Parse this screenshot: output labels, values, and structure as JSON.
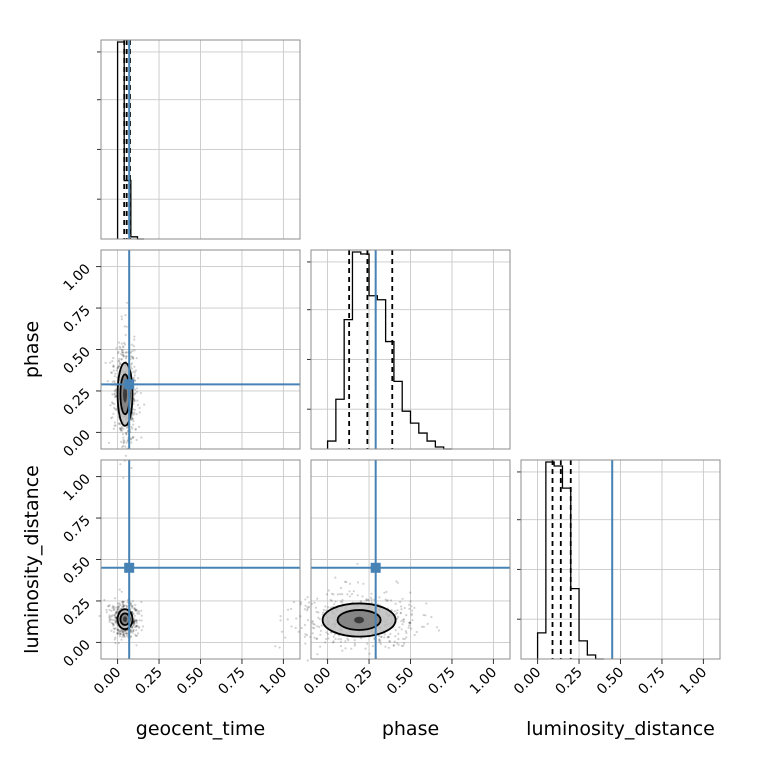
{
  "chart_data": {
    "type": "corner",
    "parameters": [
      "geocent_time",
      "phase",
      "luminosity_distance"
    ],
    "axis_range": [
      -0.1,
      1.1
    ],
    "ticks": [
      0.0,
      0.25,
      0.5,
      0.75,
      1.0
    ],
    "tick_labels": [
      "0.00",
      "0.25",
      "0.50",
      "0.75",
      "1.00"
    ],
    "truths": {
      "geocent_time": 0.07,
      "phase": 0.29,
      "luminosity_distance": 0.45
    },
    "truth_color": "#4682b4",
    "histograms": {
      "geocent_time": {
        "bin_edges": [
          0.0,
          0.04,
          0.08,
          0.12,
          0.16
        ],
        "counts": [
          0.91,
          0.27,
          0.01,
          0.0
        ],
        "quantiles": [
          0.04,
          0.055,
          0.075
        ]
      },
      "phase": {
        "bin_edges": [
          0.0,
          0.05,
          0.1,
          0.15,
          0.2,
          0.25,
          0.3,
          0.35,
          0.4,
          0.45,
          0.5,
          0.55,
          0.6,
          0.65,
          0.7,
          0.75
        ],
        "counts": [
          0.04,
          0.25,
          0.65,
          0.99,
          0.98,
          0.77,
          0.75,
          0.54,
          0.34,
          0.19,
          0.13,
          0.08,
          0.04,
          0.01,
          0.0
        ],
        "quantiles": [
          0.13,
          0.24,
          0.39
        ]
      },
      "luminosity_distance": {
        "bin_edges": [
          0.0,
          0.05,
          0.1,
          0.15,
          0.2,
          0.25,
          0.3,
          0.35,
          0.4
        ],
        "counts": [
          0.13,
          0.98,
          0.96,
          0.85,
          0.35,
          0.09,
          0.02,
          0.0
        ],
        "quantiles": [
          0.09,
          0.14,
          0.2
        ]
      }
    },
    "density_2d": [
      {
        "x": "geocent_time",
        "y": "phase",
        "center": [
          0.045,
          0.23
        ],
        "levels": [
          [
            0.012,
            0.05
          ],
          [
            0.028,
            0.12
          ],
          [
            0.045,
            0.19
          ]
        ]
      },
      {
        "x": "geocent_time",
        "y": "luminosity_distance",
        "center": [
          0.045,
          0.14
        ],
        "levels": [
          [
            0.012,
            0.018
          ],
          [
            0.028,
            0.035
          ],
          [
            0.045,
            0.06
          ]
        ]
      },
      {
        "x": "phase",
        "y": "luminosity_distance",
        "center": [
          0.19,
          0.135
        ],
        "levels": [
          [
            0.03,
            0.02
          ],
          [
            0.13,
            0.06
          ],
          [
            0.22,
            0.1
          ]
        ]
      }
    ]
  }
}
